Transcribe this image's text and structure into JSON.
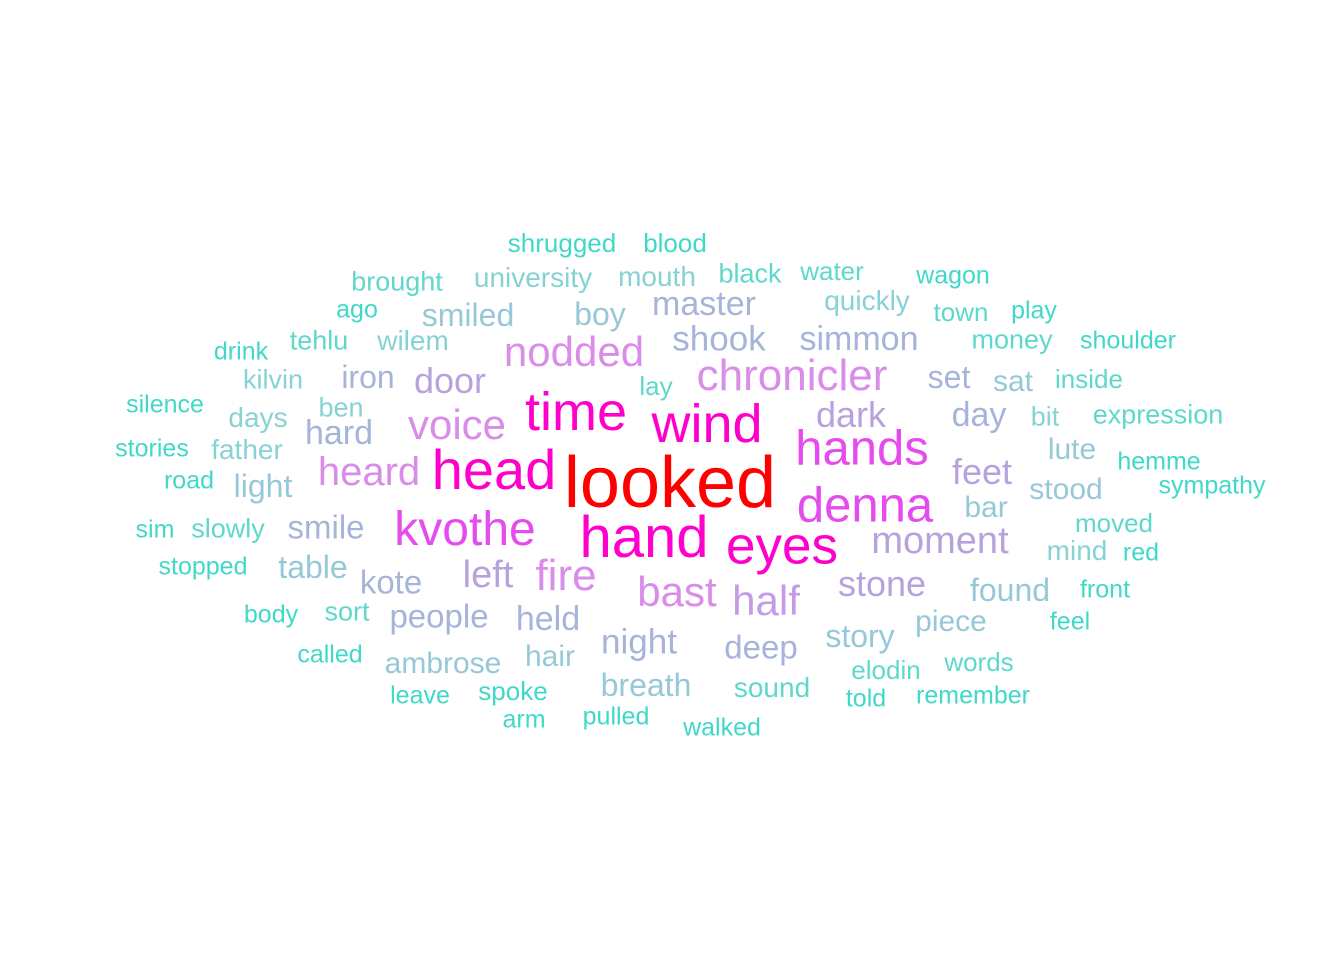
{
  "chart_data": {
    "type": "wordcloud",
    "title": "",
    "palette": {
      "max": "#FF0000",
      "high": "#FF00CC",
      "upper": "#E64BEE",
      "mid": "#D98CE8",
      "lowmid": "#B8A2DE",
      "low": "#A6B4DA",
      "lower": "#96C8D8",
      "min": "#40D8C8"
    },
    "words": [
      {
        "text": "looked",
        "weight": 72,
        "color": "#FF0000"
      },
      {
        "text": "hand",
        "weight": 58,
        "color": "#FF00CC"
      },
      {
        "text": "head",
        "weight": 56,
        "color": "#FF00CC"
      },
      {
        "text": "time",
        "weight": 54,
        "color": "#FF00CC"
      },
      {
        "text": "wind",
        "weight": 54,
        "color": "#FF00CC"
      },
      {
        "text": "eyes",
        "weight": 53,
        "color": "#FF00CC"
      },
      {
        "text": "denna",
        "weight": 49,
        "color": "#E64BEE"
      },
      {
        "text": "hands",
        "weight": 49,
        "color": "#E64BEE"
      },
      {
        "text": "kvothe",
        "weight": 48,
        "color": "#E64BEE"
      },
      {
        "text": "chronicler",
        "weight": 44,
        "color": "#D98CE8"
      },
      {
        "text": "voice",
        "weight": 42,
        "color": "#D98CE8"
      },
      {
        "text": "nodded",
        "weight": 42,
        "color": "#D98CE8"
      },
      {
        "text": "fire",
        "weight": 44,
        "color": "#D98CE8"
      },
      {
        "text": "bast",
        "weight": 42,
        "color": "#D98CE8"
      },
      {
        "text": "heard",
        "weight": 40,
        "color": "#D98CE8"
      },
      {
        "text": "half",
        "weight": 42,
        "color": "#C69BE6"
      },
      {
        "text": "moment",
        "weight": 38,
        "color": "#B8A2DE"
      },
      {
        "text": "left",
        "weight": 38,
        "color": "#B8A2DE"
      },
      {
        "text": "door",
        "weight": 36,
        "color": "#B8A2DE"
      },
      {
        "text": "dark",
        "weight": 36,
        "color": "#B8A2DE"
      },
      {
        "text": "stone",
        "weight": 36,
        "color": "#B8A2DE"
      },
      {
        "text": "feet",
        "weight": 36,
        "color": "#B8A2DE"
      },
      {
        "text": "shook",
        "weight": 35,
        "color": "#A6B4DA"
      },
      {
        "text": "simmon",
        "weight": 34,
        "color": "#A6B4DA"
      },
      {
        "text": "master",
        "weight": 34,
        "color": "#A6B4DA"
      },
      {
        "text": "smile",
        "weight": 33,
        "color": "#A6B4DA"
      },
      {
        "text": "hard",
        "weight": 34,
        "color": "#A6B4DA"
      },
      {
        "text": "night",
        "weight": 35,
        "color": "#A6B4DA"
      },
      {
        "text": "held",
        "weight": 34,
        "color": "#A6B4DA"
      },
      {
        "text": "people",
        "weight": 33,
        "color": "#A6B4DA"
      },
      {
        "text": "day",
        "weight": 34,
        "color": "#A6B4DA"
      },
      {
        "text": "kote",
        "weight": 33,
        "color": "#A6B4DA"
      },
      {
        "text": "deep",
        "weight": 33,
        "color": "#A6B4DA"
      },
      {
        "text": "set",
        "weight": 32,
        "color": "#A6B4DA"
      },
      {
        "text": "iron",
        "weight": 32,
        "color": "#A6B4DA"
      },
      {
        "text": "smiled",
        "weight": 32,
        "color": "#96C8D8"
      },
      {
        "text": "boy",
        "weight": 32,
        "color": "#96C8D8"
      },
      {
        "text": "story",
        "weight": 32,
        "color": "#96C8D8"
      },
      {
        "text": "found",
        "weight": 32,
        "color": "#96C8D8"
      },
      {
        "text": "light",
        "weight": 32,
        "color": "#96C8D8"
      },
      {
        "text": "table",
        "weight": 32,
        "color": "#96C8D8"
      },
      {
        "text": "hair",
        "weight": 30,
        "color": "#96C8D8"
      },
      {
        "text": "piece",
        "weight": 30,
        "color": "#96C8D8"
      },
      {
        "text": "ambrose",
        "weight": 30,
        "color": "#96C8D8"
      },
      {
        "text": "breath",
        "weight": 32,
        "color": "#96C8D8"
      },
      {
        "text": "bar",
        "weight": 30,
        "color": "#96C8D8"
      },
      {
        "text": "lute",
        "weight": 30,
        "color": "#96C8D8"
      },
      {
        "text": "stood",
        "weight": 30,
        "color": "#96C8D8"
      },
      {
        "text": "sat",
        "weight": 30,
        "color": "#96C8D8"
      },
      {
        "text": "mind",
        "weight": 28,
        "color": "#87D2D4"
      },
      {
        "text": "sound",
        "weight": 28,
        "color": "#5FD8CC"
      },
      {
        "text": "wilem",
        "weight": 28,
        "color": "#87D2D4"
      },
      {
        "text": "days",
        "weight": 28,
        "color": "#87D2D4"
      },
      {
        "text": "father",
        "weight": 28,
        "color": "#87D2D4"
      },
      {
        "text": "university",
        "weight": 28,
        "color": "#87D2D4"
      },
      {
        "text": "mouth",
        "weight": 28,
        "color": "#87D2D4"
      },
      {
        "text": "quickly",
        "weight": 28,
        "color": "#87D2D4"
      },
      {
        "text": "kilvin",
        "weight": 27,
        "color": "#87D2D4"
      },
      {
        "text": "ben",
        "weight": 27,
        "color": "#87D2D4"
      },
      {
        "text": "sort",
        "weight": 27,
        "color": "#5FD8CC"
      },
      {
        "text": "slowly",
        "weight": 27,
        "color": "#5FD8CC"
      },
      {
        "text": "bit",
        "weight": 27,
        "color": "#87D2D4"
      },
      {
        "text": "expression",
        "weight": 27,
        "color": "#5FD8CC"
      },
      {
        "text": "money",
        "weight": 27,
        "color": "#5FD8CC"
      },
      {
        "text": "tehlu",
        "weight": 27,
        "color": "#5FD8CC"
      },
      {
        "text": "lay",
        "weight": 26,
        "color": "#5FD8CC"
      },
      {
        "text": "inside",
        "weight": 26,
        "color": "#5FD8CC"
      },
      {
        "text": "town",
        "weight": 26,
        "color": "#5FD8CC"
      },
      {
        "text": "black",
        "weight": 27,
        "color": "#5FD8CC"
      },
      {
        "text": "brought",
        "weight": 27,
        "color": "#5FD8CC"
      },
      {
        "text": "water",
        "weight": 26,
        "color": "#5FD8CC"
      },
      {
        "text": "elodin",
        "weight": 26,
        "color": "#5FD8CC"
      },
      {
        "text": "words",
        "weight": 26,
        "color": "#5FD8CC"
      },
      {
        "text": "moved",
        "weight": 26,
        "color": "#5FD8CC"
      },
      {
        "text": "spoke",
        "weight": 26,
        "color": "#40D8C8"
      },
      {
        "text": "shrugged",
        "weight": 26,
        "color": "#40D8C8"
      },
      {
        "text": "blood",
        "weight": 26,
        "color": "#40D8C8"
      },
      {
        "text": "wagon",
        "weight": 25,
        "color": "#40D8C8"
      },
      {
        "text": "play",
        "weight": 25,
        "color": "#40D8C8"
      },
      {
        "text": "ago",
        "weight": 25,
        "color": "#40D8C8"
      },
      {
        "text": "shoulder",
        "weight": 25,
        "color": "#40D8C8"
      },
      {
        "text": "drink",
        "weight": 25,
        "color": "#40D8C8"
      },
      {
        "text": "silence",
        "weight": 25,
        "color": "#40D8C8"
      },
      {
        "text": "stories",
        "weight": 25,
        "color": "#40D8C8"
      },
      {
        "text": "road",
        "weight": 25,
        "color": "#40D8C8"
      },
      {
        "text": "hemme",
        "weight": 25,
        "color": "#40D8C8"
      },
      {
        "text": "sympathy",
        "weight": 25,
        "color": "#40D8C8"
      },
      {
        "text": "sim",
        "weight": 25,
        "color": "#40D8C8"
      },
      {
        "text": "red",
        "weight": 25,
        "color": "#40D8C8"
      },
      {
        "text": "stopped",
        "weight": 25,
        "color": "#40D8C8"
      },
      {
        "text": "front",
        "weight": 25,
        "color": "#40D8C8"
      },
      {
        "text": "body",
        "weight": 25,
        "color": "#40D8C8"
      },
      {
        "text": "feel",
        "weight": 25,
        "color": "#40D8C8"
      },
      {
        "text": "called",
        "weight": 25,
        "color": "#40D8C8"
      },
      {
        "text": "leave",
        "weight": 25,
        "color": "#40D8C8"
      },
      {
        "text": "told",
        "weight": 25,
        "color": "#40D8C8"
      },
      {
        "text": "remember",
        "weight": 25,
        "color": "#40D8C8"
      },
      {
        "text": "arm",
        "weight": 25,
        "color": "#40D8C8"
      },
      {
        "text": "pulled",
        "weight": 25,
        "color": "#40D8C8"
      },
      {
        "text": "walked",
        "weight": 25,
        "color": "#40D8C8"
      }
    ]
  }
}
